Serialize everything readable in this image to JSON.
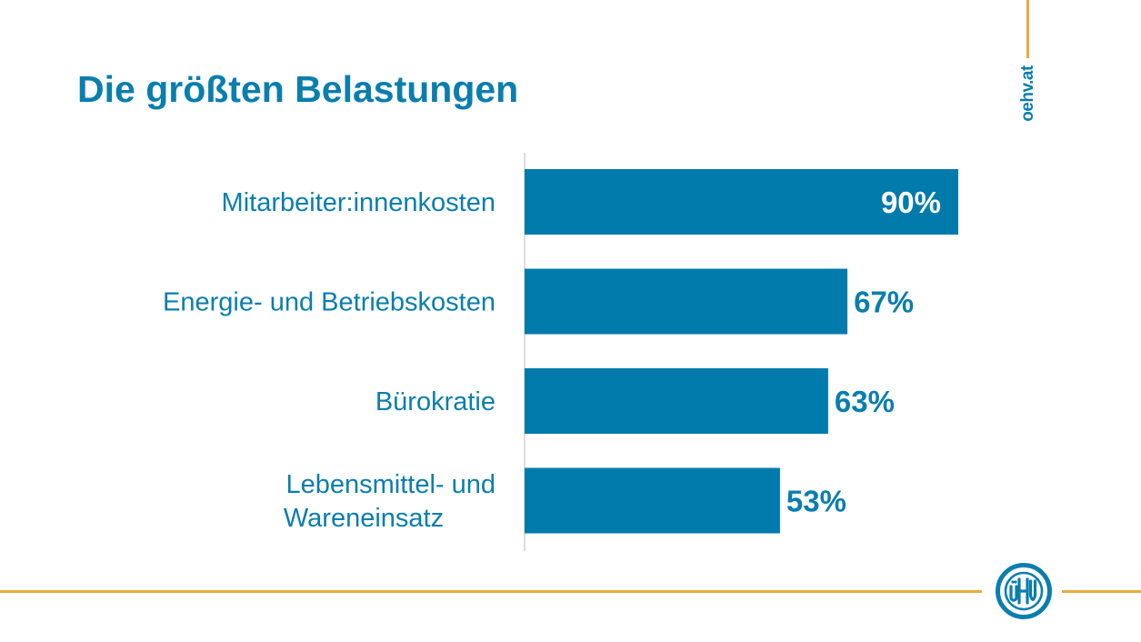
{
  "header": {
    "title": "Die größten Belastungen",
    "site": "oehv.at"
  },
  "logo": {
    "text": "öHV"
  },
  "colors": {
    "brand_blue": "#0a7ead",
    "bar_blue": "#007bab",
    "accent_orange": "#e9ac3d",
    "axis_grey": "#d0d0d0"
  },
  "chart_data": {
    "type": "bar",
    "orientation": "horizontal",
    "title": "Die größten Belastungen",
    "xlabel": "",
    "ylabel": "",
    "xlim": [
      0,
      90
    ],
    "grid": false,
    "categories": [
      [
        "Mitarbeiter:innenkosten"
      ],
      [
        "Energie- und Betriebskosten"
      ],
      [
        "Bürokratie"
      ],
      [
        "Lebensmittel- und",
        "Wareneinsatz"
      ]
    ],
    "values": [
      90,
      67,
      63,
      53
    ],
    "value_labels": [
      "90%",
      "67%",
      "63%",
      "53%"
    ],
    "value_label_inside": [
      true,
      false,
      false,
      false
    ]
  }
}
